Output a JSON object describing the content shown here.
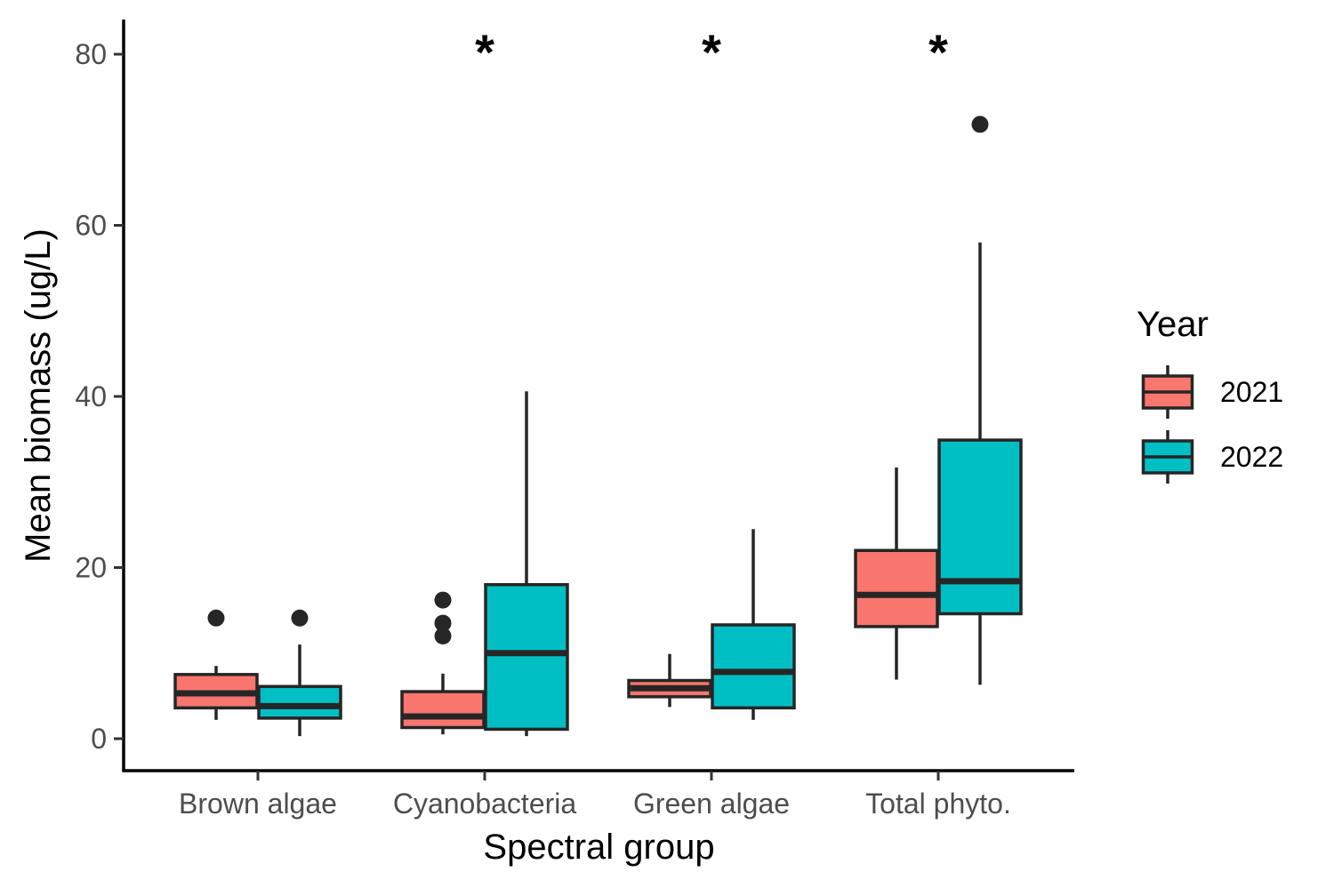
{
  "chart_data": {
    "type": "boxplot",
    "xlabel": "Spectral group",
    "ylabel": "Mean biomass (ug/L)",
    "ylim": [
      -3.7,
      83.8
    ],
    "yticks": [
      0,
      20,
      40,
      60,
      80
    ],
    "categories": [
      "Brown algae",
      "Cyanobacteria",
      "Green algae",
      "Total phyto."
    ],
    "significance": [
      "",
      "*",
      "*",
      "*"
    ],
    "legend": {
      "title": "Year",
      "position": "right"
    },
    "series": [
      {
        "name": "2021",
        "color": "#F8766D",
        "boxes": [
          {
            "whisker_low": 2.2,
            "q1": 3.6,
            "median": 5.3,
            "q3": 7.5,
            "whisker_high": 8.5,
            "outliers": [
              14.1
            ]
          },
          {
            "whisker_low": 0.5,
            "q1": 1.3,
            "median": 2.6,
            "q3": 5.5,
            "whisker_high": 7.6,
            "outliers": [
              12.0,
              13.5,
              16.2
            ]
          },
          {
            "whisker_low": 3.7,
            "q1": 4.9,
            "median": 5.9,
            "q3": 6.8,
            "whisker_high": 9.9,
            "outliers": []
          },
          {
            "whisker_low": 6.9,
            "q1": 13.1,
            "median": 16.8,
            "q3": 22.0,
            "whisker_high": 31.7,
            "outliers": []
          }
        ]
      },
      {
        "name": "2022",
        "color": "#00BFC4",
        "boxes": [
          {
            "whisker_low": 0.3,
            "q1": 2.4,
            "median": 3.8,
            "q3": 6.1,
            "whisker_high": 11.0,
            "outliers": [
              14.1
            ]
          },
          {
            "whisker_low": 0.3,
            "q1": 1.1,
            "median": 10.0,
            "q3": 18.0,
            "whisker_high": 40.6,
            "outliers": []
          },
          {
            "whisker_low": 2.2,
            "q1": 3.6,
            "median": 7.8,
            "q3": 13.3,
            "whisker_high": 24.5,
            "outliers": []
          },
          {
            "whisker_low": 6.3,
            "q1": 14.6,
            "median": 18.4,
            "q3": 34.9,
            "whisker_high": 58.0,
            "outliers": [
              71.8
            ]
          }
        ]
      }
    ]
  }
}
